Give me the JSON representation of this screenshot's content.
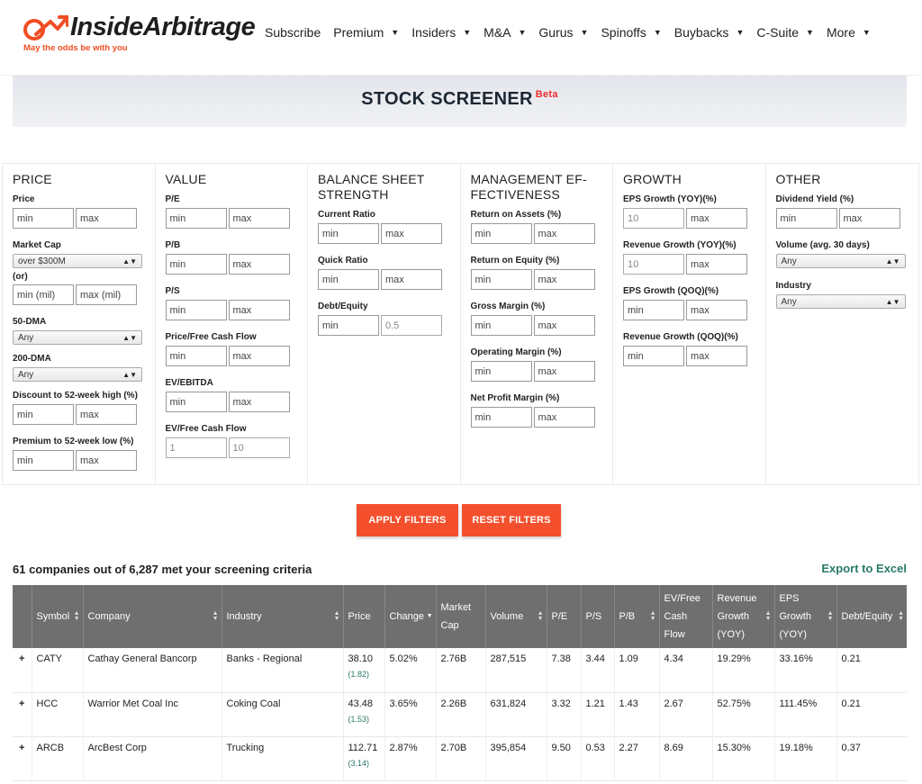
{
  "nav": {
    "logo_text": "InsideArbitrage",
    "tagline": "May the odds be with you",
    "items": [
      {
        "label": "Subscribe",
        "caret": false
      },
      {
        "label": "Premium",
        "caret": true
      },
      {
        "label": "Insiders",
        "caret": true
      },
      {
        "label": "M&A",
        "caret": true
      },
      {
        "label": "Gurus",
        "caret": true
      },
      {
        "label": "Spinoffs",
        "caret": true
      },
      {
        "label": "Buybacks",
        "caret": true
      },
      {
        "label": "C-Suite",
        "caret": true
      },
      {
        "label": "More",
        "caret": true
      }
    ]
  },
  "banner": {
    "title": "STOCK SCREENER",
    "badge": "Beta"
  },
  "filters": {
    "price": {
      "title": "PRICE",
      "price_label": "Price",
      "price_min": "min",
      "price_max": "max",
      "mcap_label": "Market Cap",
      "mcap_select": "over $300M",
      "or_label": "(or)",
      "mcap_min": "min (mil)",
      "mcap_max": "max (mil)",
      "dma50_label": "50-DMA",
      "dma50_select": "Any",
      "dma200_label": "200-DMA",
      "dma200_select": "Any",
      "disc_label": "Discount to 52-week high (%)",
      "disc_min": "min",
      "disc_max": "max",
      "prem_label": "Premium to 52-week low (%)",
      "prem_min": "min",
      "prem_max": "max"
    },
    "value": {
      "title": "VALUE",
      "pe_label": "P/E",
      "pe_min": "min",
      "pe_max": "max",
      "pb_label": "P/B",
      "pb_min": "min",
      "pb_max": "max",
      "ps_label": "P/S",
      "ps_min": "min",
      "ps_max": "max",
      "pfcf_label": "Price/Free Cash Flow",
      "pfcf_min": "min",
      "pfcf_max": "max",
      "ev_label": "EV/EBITDA",
      "ev_min": "min",
      "ev_max": "max",
      "evfcf_label": "EV/Free Cash Flow",
      "evfcf_min": "1",
      "evfcf_max": "10"
    },
    "balance": {
      "title_line1": "BALANCE SHEET",
      "title_line2": "STRENGTH",
      "cr_label": "Current Ratio",
      "cr_min": "min",
      "cr_max": "max",
      "qr_label": "Quick Ratio",
      "qr_min": "min",
      "qr_max": "max",
      "de_label": "Debt/Equity",
      "de_min": "min",
      "de_max": "0.5"
    },
    "management": {
      "title_line1": "MANAGEMENT EF-",
      "title_line2": "FECTIVENESS",
      "roa_label": "Return on Assets (%)",
      "roa_min": "min",
      "roa_max": "max",
      "roe_label": "Return on Equity (%)",
      "roe_min": "min",
      "roe_max": "max",
      "gm_label": "Gross Margin (%)",
      "gm_min": "min",
      "gm_max": "max",
      "om_label": "Operating Margin (%)",
      "om_min": "min",
      "om_max": "max",
      "npm_label": "Net Profit Margin (%)",
      "npm_min": "min",
      "npm_max": "max"
    },
    "growth": {
      "title": "GROWTH",
      "epsy_label": "EPS Growth (YOY)(%)",
      "epsy_min": "10",
      "epsy_max": "max",
      "revy_label": "Revenue Growth (YOY)(%)",
      "revy_min": "10",
      "revy_max": "max",
      "epsq_label": "EPS Growth (QOQ)(%)",
      "epsq_min": "min",
      "epsq_max": "max",
      "revq_label": "Revenue Growth (QOQ)(%)",
      "revq_min": "min",
      "revq_max": "max"
    },
    "other": {
      "title": "OTHER",
      "div_label": "Dividend Yield (%)",
      "div_min": "min",
      "div_max": "max",
      "vol_label": "Volume (avg. 30 days)",
      "vol_select": "Any",
      "ind_label": "Industry",
      "ind_select": "Any"
    }
  },
  "buttons": {
    "apply": "APPLY FILTERS",
    "reset": "RESET FILTERS"
  },
  "results": {
    "summary": "61 companies out of 6,287 met your screening criteria",
    "export": "Export to Excel"
  },
  "table": {
    "headers": {
      "symbol": "Symbol",
      "company": "Company",
      "industry": "Industry",
      "price": "Price",
      "change": "Change",
      "mcap_1": "Market",
      "mcap_2": "Cap",
      "volume": "Volume",
      "pe": "P/E",
      "ps": "P/S",
      "pb": "P/B",
      "evfcf_1": "EV/Free",
      "evfcf_2": "Cash",
      "evfcf_3": "Flow",
      "rev_1": "Revenue",
      "rev_2": "Growth",
      "rev_3": "(YOY)",
      "eps_1": "EPS",
      "eps_2": "Growth",
      "eps_3": "(YOY)",
      "de": "Debt/Equity"
    },
    "rows": [
      {
        "plus": "+",
        "symbol": "CATY",
        "company": "Cathay General Bancorp",
        "industry": "Banks - Regional",
        "price": "38.10",
        "price_change": "(1.82)",
        "change": "5.02%",
        "mcap": "2.76B",
        "volume": "287,515",
        "pe": "7.38",
        "ps": "3.44",
        "pb": "1.09",
        "evfcf": "4.34",
        "rev": "19.29%",
        "eps": "33.16%",
        "de": "0.21"
      },
      {
        "plus": "+",
        "symbol": "HCC",
        "company": "Warrior Met Coal Inc",
        "industry": "Coking Coal",
        "price": "43.48",
        "price_change": "(1.53)",
        "change": "3.65%",
        "mcap": "2.26B",
        "volume": "631,824",
        "pe": "3.32",
        "ps": "1.21",
        "pb": "1.43",
        "evfcf": "2.67",
        "rev": "52.75%",
        "eps": "111.45%",
        "de": "0.21"
      },
      {
        "plus": "+",
        "symbol": "ARCB",
        "company": "ArcBest Corp",
        "industry": "Trucking",
        "price": "112.71",
        "price_change": "(3.14)",
        "change": "2.87%",
        "mcap": "2.70B",
        "volume": "395,854",
        "pe": "9.50",
        "ps": "0.53",
        "pb": "2.27",
        "evfcf": "8.69",
        "rev": "15.30%",
        "eps": "19.18%",
        "de": "0.37"
      }
    ]
  }
}
